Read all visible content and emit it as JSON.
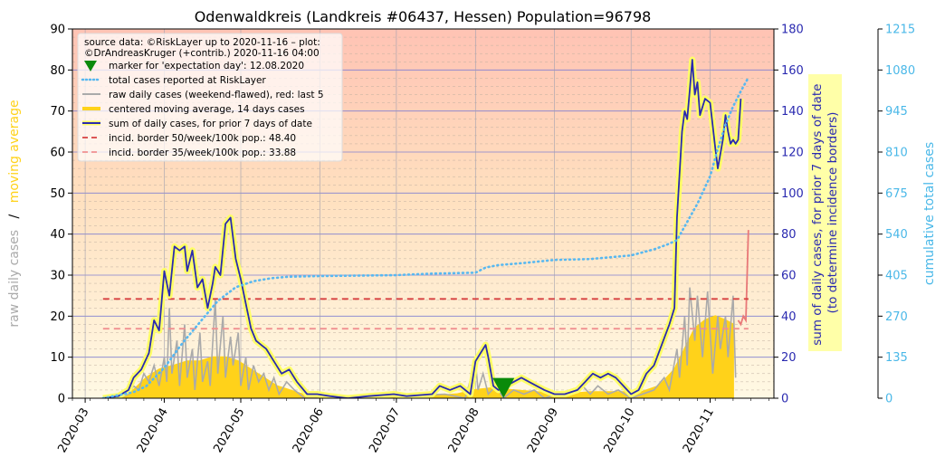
{
  "chart_data": {
    "type": "line",
    "title": "Odenwaldkreis (Landkreis #06437, Hessen) Population=96798",
    "x_axis": {
      "type": "date",
      "range": [
        "2020-02-25",
        "2020-11-26"
      ],
      "tick_labels": [
        "2020-03",
        "2020-04",
        "2020-05",
        "2020-06",
        "2020-07",
        "2020-08",
        "2020-09",
        "2020-10",
        "2020-11"
      ],
      "tick_dates": [
        "2020-03-01",
        "2020-04-01",
        "2020-05-01",
        "2020-06-01",
        "2020-07-01",
        "2020-08-01",
        "2020-09-01",
        "2020-10-01",
        "2020-11-01"
      ]
    },
    "y_left": {
      "label_part1": "raw daily cases",
      "label_sep": "/",
      "label_part2": "moving average",
      "range": [
        0,
        90
      ],
      "ticks": [
        "0",
        "10",
        "20",
        "30",
        "40",
        "50",
        "60",
        "70",
        "80",
        "90"
      ]
    },
    "y_right1": {
      "label_line1": "sum of daily cases, for prior 7 days of date",
      "label_line2": "(to determine incidence borders)",
      "range": [
        0,
        180
      ],
      "ticks": [
        "0",
        "20",
        "40",
        "60",
        "80",
        "100",
        "120",
        "140",
        "160",
        "180"
      ]
    },
    "y_right2": {
      "label": "cumulative total cases",
      "range": [
        0,
        1215
      ],
      "ticks": [
        "0",
        "135",
        "270",
        "405",
        "540",
        "675",
        "810",
        "945",
        "1080",
        "1215"
      ]
    },
    "legend": {
      "placement": "top-left",
      "source_line1": "source data: ©RiskLayer up to 2020-11-16 – plot:",
      "source_line2": "©DrAndreasKruger (+contrib.) 2020-11-16 04:00",
      "entries": [
        "marker for 'expectation day': 12.08.2020",
        "total cases reported at RiskLayer",
        "raw daily cases (weekend-flawed), red: last 5",
        "centered moving average, 14 days cases",
        "sum of daily cases, for prior 7 days of date",
        "incid. border 50/week/100k pop.: 48.40",
        "incid. border 35/week/100k pop.: 33.88"
      ]
    },
    "expectation_marker": {
      "date": "2020-08-12",
      "value": 2.5
    },
    "incidence_50": {
      "value": 48.4,
      "from": "2020-03-08",
      "to": "2020-11-16"
    },
    "incidence_35": {
      "value": 33.88,
      "from": "2020-03-08",
      "to": "2020-11-16"
    },
    "series": [
      {
        "name": "sum of daily cases, for prior 7 days of date",
        "axis": "right1",
        "points": [
          [
            "2020-03-08",
            0
          ],
          [
            "2020-03-14",
            1
          ],
          [
            "2020-03-18",
            4
          ],
          [
            "2020-03-20",
            10
          ],
          [
            "2020-03-23",
            14
          ],
          [
            "2020-03-26",
            22
          ],
          [
            "2020-03-28",
            38
          ],
          [
            "2020-03-30",
            33
          ],
          [
            "2020-04-01",
            62
          ],
          [
            "2020-04-03",
            50
          ],
          [
            "2020-04-05",
            74
          ],
          [
            "2020-04-07",
            72
          ],
          [
            "2020-04-09",
            74
          ],
          [
            "2020-04-10",
            62
          ],
          [
            "2020-04-12",
            72
          ],
          [
            "2020-04-14",
            54
          ],
          [
            "2020-04-16",
            58
          ],
          [
            "2020-04-18",
            44
          ],
          [
            "2020-04-20",
            56
          ],
          [
            "2020-04-21",
            64
          ],
          [
            "2020-04-23",
            60
          ],
          [
            "2020-04-25",
            85
          ],
          [
            "2020-04-27",
            88
          ],
          [
            "2020-04-29",
            68
          ],
          [
            "2020-05-01",
            58
          ],
          [
            "2020-05-03",
            46
          ],
          [
            "2020-05-05",
            34
          ],
          [
            "2020-05-07",
            28
          ],
          [
            "2020-05-09",
            26
          ],
          [
            "2020-05-11",
            24
          ],
          [
            "2020-05-14",
            18
          ],
          [
            "2020-05-17",
            12
          ],
          [
            "2020-05-20",
            14
          ],
          [
            "2020-05-23",
            8
          ],
          [
            "2020-05-27",
            2
          ],
          [
            "2020-05-31",
            2
          ],
          [
            "2020-06-05",
            1
          ],
          [
            "2020-06-12",
            0
          ],
          [
            "2020-06-20",
            1
          ],
          [
            "2020-06-30",
            2
          ],
          [
            "2020-07-05",
            1
          ],
          [
            "2020-07-15",
            2
          ],
          [
            "2020-07-18",
            6
          ],
          [
            "2020-07-22",
            4
          ],
          [
            "2020-07-26",
            6
          ],
          [
            "2020-07-30",
            2
          ],
          [
            "2020-08-01",
            18
          ],
          [
            "2020-08-03",
            22
          ],
          [
            "2020-08-05",
            26
          ],
          [
            "2020-08-06",
            20
          ],
          [
            "2020-08-08",
            6
          ],
          [
            "2020-08-10",
            4
          ],
          [
            "2020-08-13",
            6
          ],
          [
            "2020-08-16",
            8
          ],
          [
            "2020-08-19",
            10
          ],
          [
            "2020-08-22",
            8
          ],
          [
            "2020-08-25",
            6
          ],
          [
            "2020-08-28",
            4
          ],
          [
            "2020-09-01",
            2
          ],
          [
            "2020-09-05",
            2
          ],
          [
            "2020-09-10",
            4
          ],
          [
            "2020-09-13",
            8
          ],
          [
            "2020-09-16",
            12
          ],
          [
            "2020-09-19",
            10
          ],
          [
            "2020-09-22",
            12
          ],
          [
            "2020-09-25",
            10
          ],
          [
            "2020-09-28",
            6
          ],
          [
            "2020-10-01",
            2
          ],
          [
            "2020-10-04",
            4
          ],
          [
            "2020-10-07",
            12
          ],
          [
            "2020-10-10",
            16
          ],
          [
            "2020-10-13",
            26
          ],
          [
            "2020-10-16",
            36
          ],
          [
            "2020-10-18",
            44
          ],
          [
            "2020-10-19",
            88
          ],
          [
            "2020-10-21",
            130
          ],
          [
            "2020-10-22",
            140
          ],
          [
            "2020-10-23",
            136
          ],
          [
            "2020-10-24",
            150
          ],
          [
            "2020-10-25",
            165
          ],
          [
            "2020-10-26",
            148
          ],
          [
            "2020-10-27",
            154
          ],
          [
            "2020-10-28",
            138
          ],
          [
            "2020-10-30",
            146
          ],
          [
            "2020-11-01",
            144
          ],
          [
            "2020-11-03",
            122
          ],
          [
            "2020-11-04",
            112
          ],
          [
            "2020-11-06",
            126
          ],
          [
            "2020-11-07",
            138
          ],
          [
            "2020-11-08",
            130
          ],
          [
            "2020-11-09",
            124
          ],
          [
            "2020-11-10",
            126
          ],
          [
            "2020-11-11",
            124
          ],
          [
            "2020-11-12",
            126
          ],
          [
            "2020-11-13",
            146
          ]
        ]
      },
      {
        "name": "centered moving average, 14 days cases",
        "axis": "left",
        "points": [
          [
            "2020-03-08",
            0
          ],
          [
            "2020-03-15",
            0.5
          ],
          [
            "2020-03-20",
            2
          ],
          [
            "2020-03-25",
            5
          ],
          [
            "2020-03-30",
            7
          ],
          [
            "2020-04-05",
            8
          ],
          [
            "2020-04-10",
            9
          ],
          [
            "2020-04-15",
            9
          ],
          [
            "2020-04-20",
            10
          ],
          [
            "2020-04-25",
            10
          ],
          [
            "2020-04-30",
            9
          ],
          [
            "2020-05-05",
            7
          ],
          [
            "2020-05-10",
            5
          ],
          [
            "2020-05-15",
            3
          ],
          [
            "2020-05-20",
            2
          ],
          [
            "2020-05-25",
            1
          ],
          [
            "2020-06-01",
            0.5
          ],
          [
            "2020-06-15",
            0.3
          ],
          [
            "2020-07-01",
            0.3
          ],
          [
            "2020-07-15",
            0.5
          ],
          [
            "2020-07-25",
            1
          ],
          [
            "2020-08-01",
            2
          ],
          [
            "2020-08-08",
            2.5
          ],
          [
            "2020-08-15",
            2
          ],
          [
            "2020-08-25",
            1.5
          ],
          [
            "2020-09-05",
            1
          ],
          [
            "2020-09-15",
            1.5
          ],
          [
            "2020-09-25",
            1.5
          ],
          [
            "2020-10-05",
            1.5
          ],
          [
            "2020-10-12",
            3
          ],
          [
            "2020-10-18",
            7
          ],
          [
            "2020-10-22",
            12
          ],
          [
            "2020-10-26",
            17
          ],
          [
            "2020-10-30",
            19
          ],
          [
            "2020-11-03",
            20
          ],
          [
            "2020-11-07",
            19
          ],
          [
            "2020-11-10",
            18
          ]
        ]
      },
      {
        "name": "raw daily cases (weekend-flawed), red: last 5",
        "axis": "left",
        "points": [
          [
            "2020-03-08",
            0
          ],
          [
            "2020-03-14",
            0
          ],
          [
            "2020-03-18",
            1
          ],
          [
            "2020-03-20",
            3
          ],
          [
            "2020-03-22",
            2
          ],
          [
            "2020-03-24",
            6
          ],
          [
            "2020-03-26",
            4
          ],
          [
            "2020-03-28",
            8
          ],
          [
            "2020-03-30",
            3
          ],
          [
            "2020-04-01",
            10
          ],
          [
            "2020-04-02",
            4
          ],
          [
            "2020-04-03",
            22
          ],
          [
            "2020-04-04",
            6
          ],
          [
            "2020-04-06",
            14
          ],
          [
            "2020-04-07",
            3
          ],
          [
            "2020-04-09",
            18
          ],
          [
            "2020-04-10",
            5
          ],
          [
            "2020-04-12",
            12
          ],
          [
            "2020-04-13",
            2
          ],
          [
            "2020-04-15",
            16
          ],
          [
            "2020-04-16",
            4
          ],
          [
            "2020-04-18",
            9
          ],
          [
            "2020-04-19",
            3
          ],
          [
            "2020-04-21",
            24
          ],
          [
            "2020-04-22",
            6
          ],
          [
            "2020-04-24",
            20
          ],
          [
            "2020-04-25",
            5
          ],
          [
            "2020-04-27",
            15
          ],
          [
            "2020-04-28",
            8
          ],
          [
            "2020-04-30",
            16
          ],
          [
            "2020-05-01",
            3
          ],
          [
            "2020-05-03",
            10
          ],
          [
            "2020-05-04",
            2
          ],
          [
            "2020-05-06",
            8
          ],
          [
            "2020-05-08",
            4
          ],
          [
            "2020-05-10",
            6
          ],
          [
            "2020-05-12",
            2
          ],
          [
            "2020-05-14",
            5
          ],
          [
            "2020-05-16",
            1
          ],
          [
            "2020-05-19",
            4
          ],
          [
            "2020-05-22",
            2
          ],
          [
            "2020-05-26",
            0
          ],
          [
            "2020-06-15",
            0
          ],
          [
            "2020-07-20",
            1
          ],
          [
            "2020-07-28",
            0
          ],
          [
            "2020-08-01",
            9
          ],
          [
            "2020-08-02",
            2
          ],
          [
            "2020-08-04",
            6
          ],
          [
            "2020-08-06",
            1
          ],
          [
            "2020-08-09",
            3
          ],
          [
            "2020-08-12",
            0
          ],
          [
            "2020-08-16",
            2
          ],
          [
            "2020-08-20",
            1
          ],
          [
            "2020-08-24",
            2
          ],
          [
            "2020-08-28",
            0
          ],
          [
            "2020-09-12",
            3
          ],
          [
            "2020-09-15",
            1
          ],
          [
            "2020-09-18",
            3
          ],
          [
            "2020-09-22",
            1
          ],
          [
            "2020-09-26",
            2
          ],
          [
            "2020-10-01",
            0
          ],
          [
            "2020-10-10",
            2
          ],
          [
            "2020-10-14",
            5
          ],
          [
            "2020-10-16",
            2
          ],
          [
            "2020-10-19",
            12
          ],
          [
            "2020-10-20",
            5
          ],
          [
            "2020-10-22",
            20
          ],
          [
            "2020-10-23",
            8
          ],
          [
            "2020-10-24",
            27
          ],
          [
            "2020-10-26",
            14
          ],
          [
            "2020-10-27",
            25
          ],
          [
            "2020-10-29",
            10
          ],
          [
            "2020-10-31",
            26
          ],
          [
            "2020-11-02",
            6
          ],
          [
            "2020-11-04",
            20
          ],
          [
            "2020-11-05",
            12
          ],
          [
            "2020-11-07",
            20
          ],
          [
            "2020-11-08",
            10
          ],
          [
            "2020-11-10",
            25
          ],
          [
            "2020-11-11",
            5
          ]
        ]
      },
      {
        "name": "raw daily cases, last 5 (red)",
        "axis": "left",
        "points": [
          [
            "2020-11-12",
            19
          ],
          [
            "2020-11-13",
            18
          ],
          [
            "2020-11-14",
            20
          ],
          [
            "2020-11-15",
            19
          ],
          [
            "2020-11-16",
            41
          ]
        ]
      },
      {
        "name": "total cases reported at RiskLayer",
        "axis": "right2",
        "points": [
          [
            "2020-03-08",
            0
          ],
          [
            "2020-03-20",
            20
          ],
          [
            "2020-03-25",
            40
          ],
          [
            "2020-04-01",
            100
          ],
          [
            "2020-04-08",
            180
          ],
          [
            "2020-04-15",
            250
          ],
          [
            "2020-04-22",
            320
          ],
          [
            "2020-04-29",
            365
          ],
          [
            "2020-05-06",
            385
          ],
          [
            "2020-05-13",
            395
          ],
          [
            "2020-05-20",
            400
          ],
          [
            "2020-06-01",
            402
          ],
          [
            "2020-07-01",
            405
          ],
          [
            "2020-07-15",
            410
          ],
          [
            "2020-08-01",
            413
          ],
          [
            "2020-08-05",
            430
          ],
          [
            "2020-08-10",
            438
          ],
          [
            "2020-08-20",
            445
          ],
          [
            "2020-09-01",
            455
          ],
          [
            "2020-09-15",
            458
          ],
          [
            "2020-10-01",
            470
          ],
          [
            "2020-10-10",
            490
          ],
          [
            "2020-10-15",
            505
          ],
          [
            "2020-10-19",
            520
          ],
          [
            "2020-10-23",
            580
          ],
          [
            "2020-10-27",
            640
          ],
          [
            "2020-11-01",
            730
          ],
          [
            "2020-11-04",
            820
          ],
          [
            "2020-11-07",
            900
          ],
          [
            "2020-11-10",
            960
          ],
          [
            "2020-11-13",
            1010
          ],
          [
            "2020-11-16",
            1055
          ]
        ]
      }
    ],
    "colors": {
      "sum7": "#2a2ab0",
      "halo": "#ffff66",
      "moving_average": "#ffd21a",
      "raw": "#aaaaaa",
      "raw_last5": "#e87878",
      "total": "#58b8f0",
      "inc50": "#d84040",
      "inc35": "#f09090",
      "marker": "#0a8a0a",
      "left_label_raw": "#aaaaaa",
      "left_label_ma": "#ffd21a",
      "right1_text": "#2a2ab0",
      "right2_text": "#4ab8e8"
    }
  }
}
